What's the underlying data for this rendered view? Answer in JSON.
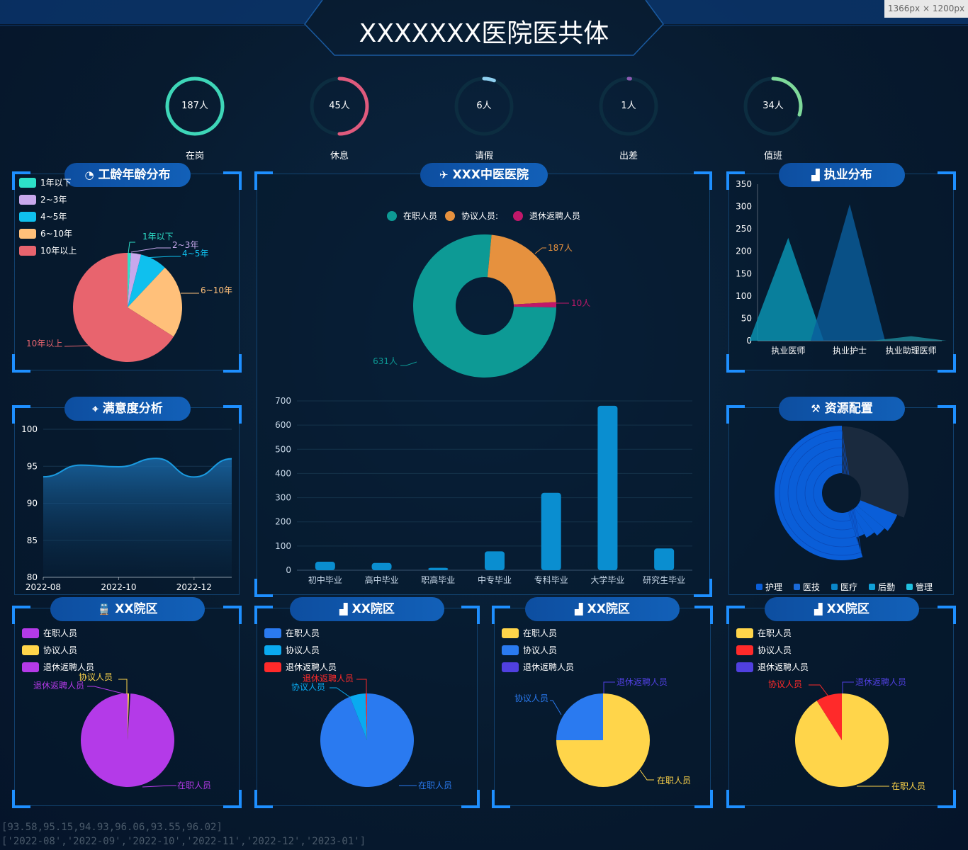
{
  "dim_tag": "1366px × 1200px",
  "title": "XXXXXXX医院医共体",
  "stats": [
    {
      "value": "187人",
      "label": "在岗",
      "color": "#3ed6b8",
      "fraction": 1.0
    },
    {
      "value": "45人",
      "label": "休息",
      "color": "#e05a7d",
      "fraction": 0.5
    },
    {
      "value": "6人",
      "label": "请假",
      "color": "#8fd0f0",
      "fraction": 0.06
    },
    {
      "value": "1人",
      "label": "出差",
      "color": "#8a5ab0",
      "fraction": 0.01
    },
    {
      "value": "34人",
      "label": "值班",
      "color": "#7ed99a",
      "fraction": 0.3
    }
  ],
  "panels": {
    "seniority": {
      "title": "工龄年龄分布"
    },
    "hospital": {
      "title": "XXX中医医院"
    },
    "practice": {
      "title": "执业分布"
    },
    "satisfaction": {
      "title": "满意度分析"
    },
    "resources": {
      "title": "资源配置"
    },
    "campus1": {
      "title": "XX院区"
    },
    "campus2": {
      "title": "XX院区"
    },
    "campus3": {
      "title": "XX院区"
    },
    "campus4": {
      "title": "XX院区"
    }
  },
  "chart_data": [
    {
      "id": "seniority",
      "type": "pie",
      "labels": [
        "1年以下",
        "2~3年",
        "4~5年",
        "6~10年",
        "10年以上"
      ],
      "values": [
        1,
        3,
        8,
        22,
        66
      ],
      "colors": [
        "#2de0c8",
        "#c8a8ec",
        "#0fc0ee",
        "#ffc07a",
        "#e8646e"
      ],
      "legend": [
        "1年以下",
        "2~3年",
        "4~5年",
        "6~10年",
        "10年以上"
      ]
    },
    {
      "id": "hospital-donut",
      "type": "pie",
      "labels": [
        "在职人员",
        "协议人员:",
        "退休返聘人员"
      ],
      "values": [
        631,
        187,
        10
      ],
      "value_labels": [
        "631人",
        "187人",
        "10人"
      ],
      "colors": [
        "#0d9a95",
        "#e6913e",
        "#c0186a"
      ]
    },
    {
      "id": "education",
      "type": "bar",
      "categories": [
        "初中毕业",
        "高中毕业",
        "职高毕业",
        "中专毕业",
        "专科毕业",
        "大学毕业",
        "研究生毕业"
      ],
      "values": [
        35,
        30,
        10,
        78,
        320,
        680,
        90
      ],
      "ylim": [
        0,
        700
      ],
      "yticks": [
        "0",
        "100",
        "200",
        "300",
        "400",
        "500",
        "600",
        "700"
      ],
      "color": "#0a8ed0"
    },
    {
      "id": "practice",
      "type": "area",
      "categories": [
        "执业医师",
        "执业护士",
        "执业助理医师"
      ],
      "values": [
        230,
        305,
        10
      ],
      "ylim": [
        0,
        350
      ],
      "yticks": [
        "0",
        "50",
        "100",
        "150",
        "200",
        "250",
        "300",
        "350"
      ],
      "colors": [
        "#0a98b8",
        "#0a5e9c",
        "#1a8a9a"
      ]
    },
    {
      "id": "satisfaction",
      "type": "line",
      "x": [
        "2022-08",
        "2022-09",
        "2022-10",
        "2022-11",
        "2022-12",
        "2023-01"
      ],
      "values": [
        93.58,
        95.15,
        94.93,
        96.06,
        93.55,
        96.02
      ],
      "ylim": [
        80,
        100
      ],
      "yticks": [
        "80",
        "85",
        "90",
        "95",
        "100"
      ],
      "xticks": [
        "2022-08",
        "2022-10",
        "2022-12"
      ],
      "color": "#1a9ae0"
    },
    {
      "id": "resources",
      "type": "pie",
      "labels": [
        "护理",
        "医技",
        "医疗",
        "后勤",
        "管理"
      ],
      "colors": [
        "#0a5ed8",
        "#1a6ad8",
        "#0a86c8",
        "#10a0d8",
        "#20c0e0"
      ]
    },
    {
      "id": "campus1",
      "type": "pie",
      "labels": [
        "在职人员",
        "协议人员",
        "退休返聘人员"
      ],
      "values": [
        99,
        0.5,
        0.5
      ],
      "colors": [
        "#b43ae8",
        "#ffd54a",
        "#b43ae8"
      ]
    },
    {
      "id": "campus2",
      "type": "pie",
      "labels": [
        "在职人员",
        "协议人员",
        "退休返聘人员"
      ],
      "values": [
        94,
        5.5,
        0.5
      ],
      "colors": [
        "#2a7af0",
        "#0aaaf0",
        "#ff2a2a"
      ]
    },
    {
      "id": "campus3",
      "type": "pie",
      "labels": [
        "在职人员",
        "协议人员",
        "退休返聘人员"
      ],
      "values": [
        75,
        25,
        0
      ],
      "colors": [
        "#ffd54a",
        "#2a7af0",
        "#5040e0"
      ]
    },
    {
      "id": "campus4",
      "type": "pie",
      "labels": [
        "在职人员",
        "协议人员",
        "退休返聘人员"
      ],
      "values": [
        91,
        9,
        0
      ],
      "colors": [
        "#ffd54a",
        "#ff2a2a",
        "#5040e0"
      ]
    }
  ],
  "footer": {
    "line1": "[93.58,95.15,94.93,96.06,93.55,96.02]",
    "line2": "['2022-08','2022-09','2022-10','2022-11','2022-12','2023-01']"
  }
}
